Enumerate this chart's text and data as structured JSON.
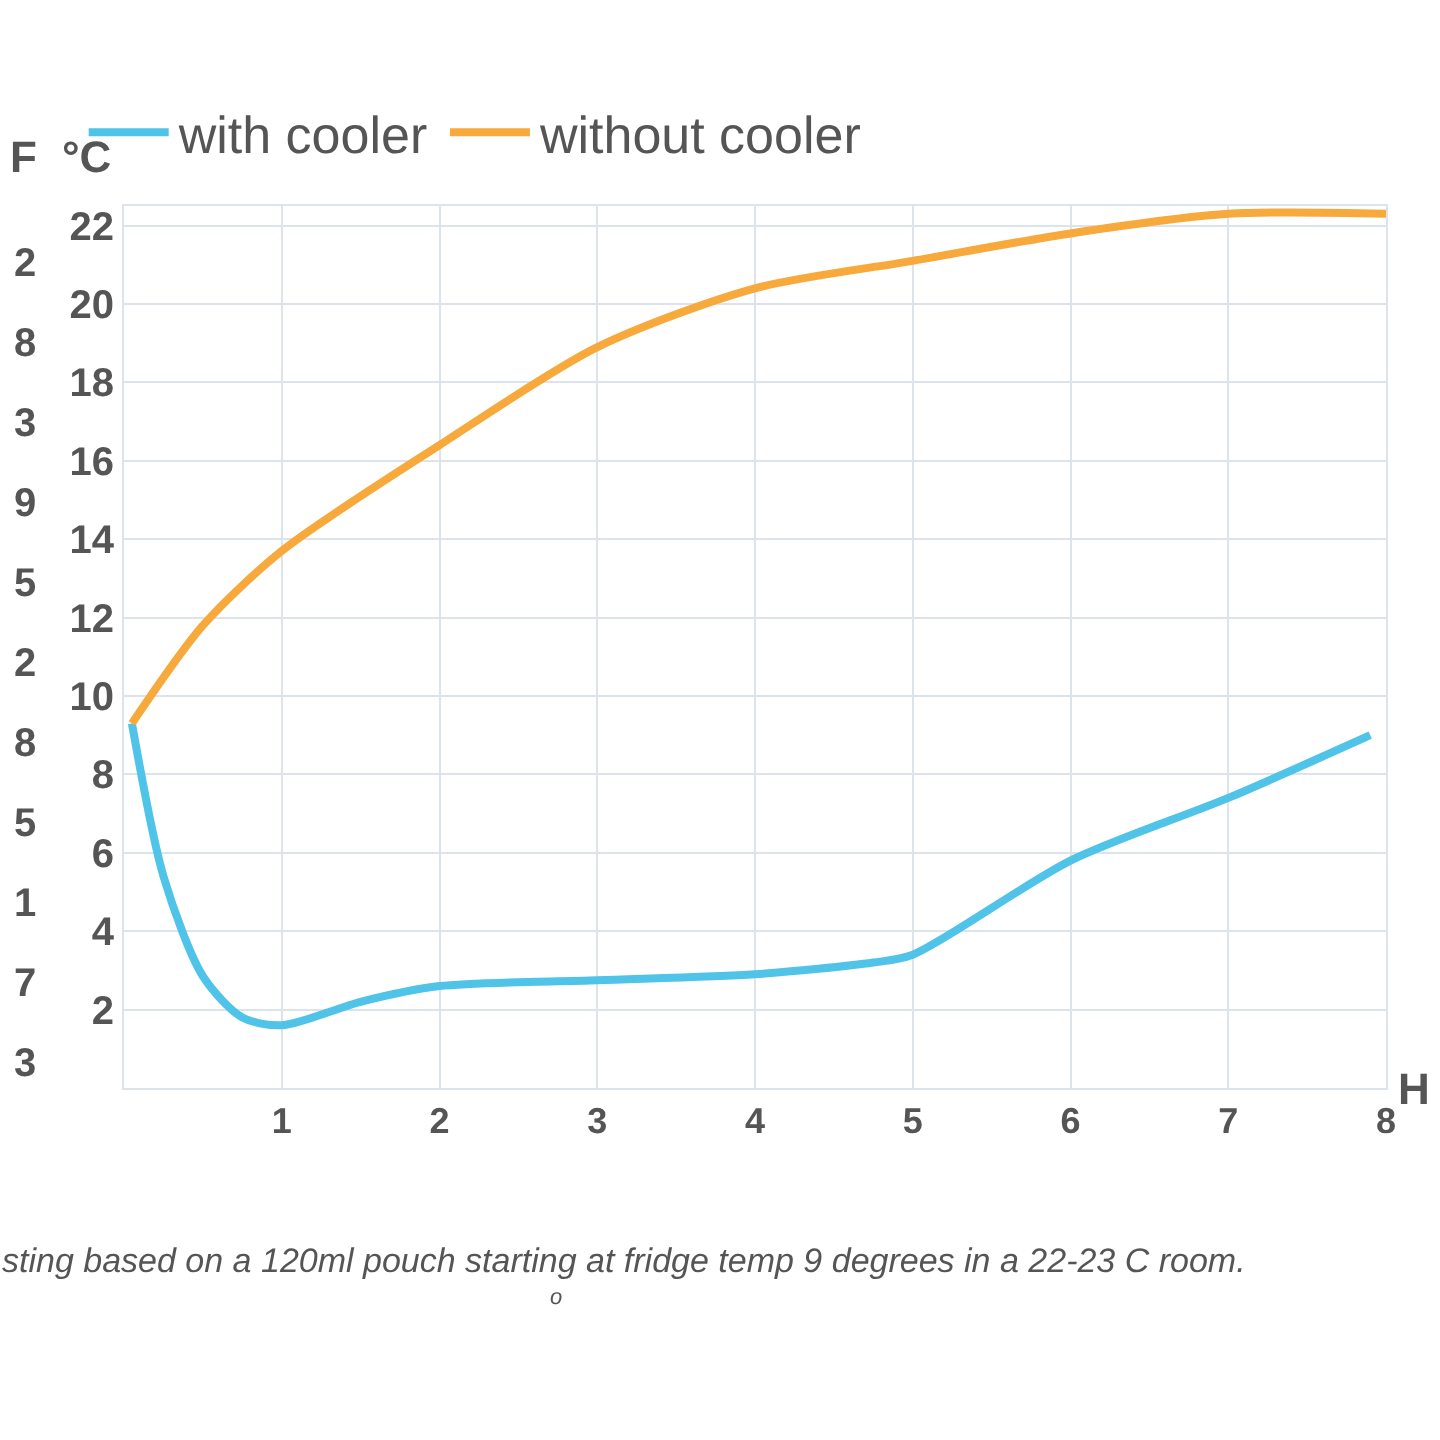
{
  "chart_data": {
    "type": "line",
    "xlabel": "H",
    "ylabel": "°C",
    "y2label": "F",
    "xlim": [
      0,
      8
    ],
    "xticks": [
      1,
      2,
      3,
      4,
      5,
      6,
      7,
      8
    ],
    "ylim": [
      0,
      22.5
    ],
    "yticks": [
      2,
      4,
      6,
      8,
      10,
      12,
      14,
      16,
      18,
      20,
      22
    ],
    "grid": true,
    "legend": "top left",
    "marker": "none",
    "line_style": "solid",
    "series": [
      {
        "name": "with cooler",
        "color": "#4fc3e8",
        "x": [
          0.05,
          0.25,
          0.5,
          0.75,
          1,
          1.5,
          2,
          3,
          4,
          4.75,
          5,
          6,
          7,
          7.9
        ],
        "values": [
          9.3,
          5.4,
          2.85,
          1.8,
          1.6,
          2.2,
          2.6,
          2.75,
          2.9,
          3.2,
          3.4,
          5.8,
          7.4,
          9.0
        ]
      },
      {
        "name": "without cooler",
        "color": "#f7a93b",
        "x": [
          0.05,
          0.5,
          1,
          2,
          3,
          4,
          5,
          6,
          7,
          8
        ],
        "values": [
          9.3,
          11.8,
          13.7,
          16.4,
          18.9,
          20.4,
          21.1,
          21.8,
          22.3,
          22.3
        ]
      }
    ],
    "annotations": [
      "sting based on a 120ml pouch starting at fridge temp 9 degrees in a 22-23 C room.",
      "o",
      "2",
      "8",
      "3",
      "9",
      "5",
      "2",
      "8",
      "5",
      "1",
      "7",
      "3"
    ]
  }
}
